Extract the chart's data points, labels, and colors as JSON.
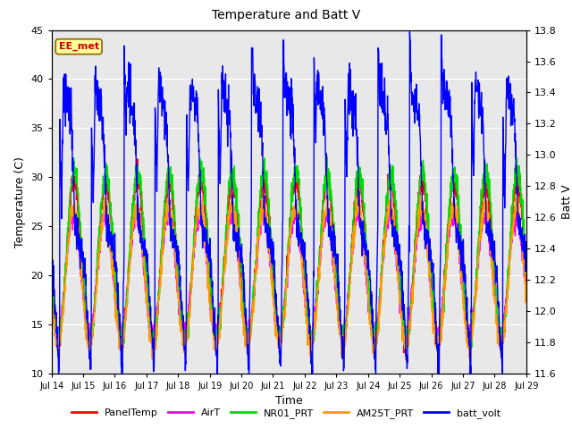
{
  "title": "Temperature and Batt V",
  "xlabel": "Time",
  "ylabel_left": "Temperature (C)",
  "ylabel_right": "Batt V",
  "annotation": "EE_met",
  "annotation_color": "#cc0000",
  "annotation_bg": "#ffff99",
  "annotation_border": "#886600",
  "xlim": [
    0,
    15
  ],
  "ylim_left": [
    10,
    45
  ],
  "ylim_right": [
    11.6,
    13.8
  ],
  "xtick_labels": [
    "Jul 14",
    "Jul 15",
    "Jul 16",
    "Jul 17",
    "Jul 18",
    "Jul 19",
    "Jul 20",
    "Jul 21",
    "Jul 22",
    "Jul 23",
    "Jul 24",
    "Jul 25",
    "Jul 26",
    "Jul 27",
    "Jul 28",
    "Jul 29"
  ],
  "yticks_left": [
    10,
    15,
    20,
    25,
    30,
    35,
    40,
    45
  ],
  "yticks_right": [
    11.6,
    11.8,
    12.0,
    12.2,
    12.4,
    12.6,
    12.8,
    13.0,
    13.2,
    13.4,
    13.6,
    13.8
  ],
  "background_color": "#ffffff",
  "plot_bg_color": "#e8e8e8",
  "grid_color": "#ffffff",
  "series": {
    "PanelTemp": {
      "color": "#ff0000",
      "lw": 1.0
    },
    "AirT": {
      "color": "#ff00ff",
      "lw": 1.0
    },
    "NR01_PRT": {
      "color": "#00dd00",
      "lw": 1.0
    },
    "AM25T_PRT": {
      "color": "#ff9900",
      "lw": 1.0
    },
    "batt_volt": {
      "color": "#0000ff",
      "lw": 1.0
    }
  },
  "legend_colors": [
    "#ff0000",
    "#ff00ff",
    "#00dd00",
    "#ff9900",
    "#0000ff"
  ],
  "legend_labels": [
    "PanelTemp",
    "AirT",
    "NR01_PRT",
    "AM25T_PRT",
    "batt_volt"
  ],
  "num_days": 15,
  "pts_per_day": 144,
  "figsize": [
    6.4,
    4.8
  ],
  "dpi": 100
}
